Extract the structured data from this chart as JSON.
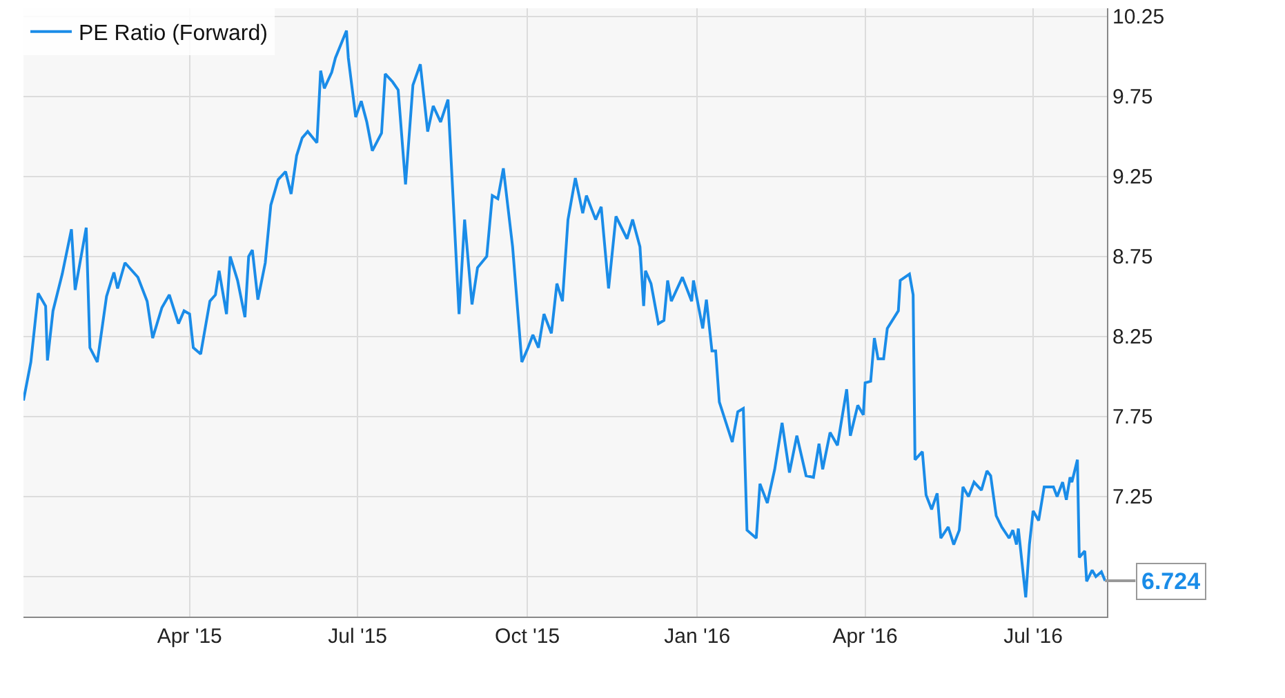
{
  "chart_data": {
    "type": "line",
    "legend": "top left",
    "grid": true,
    "marker": "none",
    "line_style": "solid",
    "xlim": [
      "2015-01-01",
      "2016-08-10"
    ],
    "xticks": [
      {
        "value": "2015-04-01",
        "label": "Apr '15"
      },
      {
        "value": "2015-07-01",
        "label": "Jul '15"
      },
      {
        "value": "2015-10-01",
        "label": "Oct '15"
      },
      {
        "value": "2016-01-01",
        "label": "Jan '16"
      },
      {
        "value": "2016-04-01",
        "label": "Apr '16"
      },
      {
        "value": "2016-07-01",
        "label": "Jul '16"
      }
    ],
    "ylim": [
      6.5,
      10.3
    ],
    "yticks": [
      {
        "value": 6.75,
        "label": null
      },
      7.25,
      7.75,
      8.25,
      8.75,
      9.25,
      9.75,
      10.25
    ],
    "annotations": [
      {
        "text": "6.724",
        "x": "2016-08-09",
        "y": 6.724
      }
    ],
    "x": [
      "2015-01-01",
      "2015-01-05",
      "2015-01-09",
      "2015-01-13",
      "2015-01-14",
      "2015-01-17",
      "2015-01-22",
      "2015-01-27",
      "2015-01-29",
      "2015-02-04",
      "2015-02-06",
      "2015-02-10",
      "2015-02-15",
      "2015-02-19",
      "2015-02-21",
      "2015-02-25",
      "2015-03-04",
      "2015-03-09",
      "2015-03-12",
      "2015-03-17",
      "2015-03-21",
      "2015-03-26",
      "2015-03-29",
      "2015-04-01",
      "2015-04-03",
      "2015-04-07",
      "2015-04-12",
      "2015-04-15",
      "2015-04-17",
      "2015-04-21",
      "2015-04-23",
      "2015-04-27",
      "2015-05-01",
      "2015-05-03",
      "2015-05-05",
      "2015-05-08",
      "2015-05-12",
      "2015-05-15",
      "2015-05-19",
      "2015-05-23",
      "2015-05-26",
      "2015-05-29",
      "2015-06-01",
      "2015-06-04",
      "2015-06-09",
      "2015-06-11",
      "2015-06-13",
      "2015-06-17",
      "2015-06-19",
      "2015-06-25",
      "2015-06-26",
      "2015-06-30",
      "2015-07-03",
      "2015-07-06",
      "2015-07-09",
      "2015-07-14",
      "2015-07-16",
      "2015-07-20",
      "2015-07-23",
      "2015-07-27",
      "2015-07-31",
      "2015-08-04",
      "2015-08-08",
      "2015-08-11",
      "2015-08-15",
      "2015-08-19",
      "2015-08-25",
      "2015-08-28",
      "2015-09-01",
      "2015-09-04",
      "2015-09-09",
      "2015-09-12",
      "2015-09-15",
      "2015-09-18",
      "2015-09-23",
      "2015-09-28",
      "2015-10-01",
      "2015-10-04",
      "2015-10-07",
      "2015-10-10",
      "2015-10-14",
      "2015-10-17",
      "2015-10-20",
      "2015-10-23",
      "2015-10-27",
      "2015-10-31",
      "2015-11-02",
      "2015-11-07",
      "2015-11-10",
      "2015-11-14",
      "2015-11-18",
      "2015-11-24",
      "2015-11-27",
      "2015-12-01",
      "2015-12-03",
      "2015-12-04",
      "2015-12-07",
      "2015-12-11",
      "2015-12-14",
      "2015-12-16",
      "2015-12-18",
      "2015-12-24",
      "2015-12-29",
      "2015-12-30",
      "2016-01-04",
      "2016-01-06",
      "2016-01-09",
      "2016-01-11",
      "2016-01-13",
      "2016-01-20",
      "2016-01-23",
      "2016-01-26",
      "2016-01-28",
      "2016-02-02",
      "2016-02-04",
      "2016-02-08",
      "2016-02-12",
      "2016-02-16",
      "2016-02-20",
      "2016-02-24",
      "2016-02-29",
      "2016-03-04",
      "2016-03-07",
      "2016-03-09",
      "2016-03-13",
      "2016-03-17",
      "2016-03-22",
      "2016-03-24",
      "2016-03-28",
      "2016-03-31",
      "2016-04-01",
      "2016-04-04",
      "2016-04-06",
      "2016-04-08",
      "2016-04-11",
      "2016-04-13",
      "2016-04-19",
      "2016-04-20",
      "2016-04-25",
      "2016-04-27",
      "2016-04-28",
      "2016-05-02",
      "2016-05-04",
      "2016-05-07",
      "2016-05-10",
      "2016-05-12",
      "2016-05-16",
      "2016-05-19",
      "2016-05-22",
      "2016-05-24",
      "2016-05-27",
      "2016-05-30",
      "2016-06-03",
      "2016-06-06",
      "2016-06-08",
      "2016-06-11",
      "2016-06-14",
      "2016-06-18",
      "2016-06-20",
      "2016-06-22",
      "2016-06-23",
      "2016-06-27",
      "2016-06-29",
      "2016-07-01",
      "2016-07-04",
      "2016-07-07",
      "2016-07-12",
      "2016-07-14",
      "2016-07-17",
      "2016-07-19",
      "2016-07-21",
      "2016-07-22",
      "2016-07-25",
      "2016-07-26",
      "2016-07-29",
      "2016-07-30",
      "2016-08-02",
      "2016-08-04",
      "2016-08-07",
      "2016-08-09"
    ],
    "series": [
      {
        "name": "PE Ratio (Forward)",
        "color": "#1a8ce8",
        "values": [
          7.85,
          8.09,
          8.52,
          8.44,
          8.1,
          8.41,
          8.64,
          8.92,
          8.54,
          8.93,
          8.18,
          8.09,
          8.5,
          8.65,
          8.55,
          8.71,
          8.62,
          8.47,
          8.24,
          8.43,
          8.51,
          8.33,
          8.41,
          8.39,
          8.18,
          8.14,
          8.47,
          8.51,
          8.66,
          8.39,
          8.75,
          8.6,
          8.37,
          8.75,
          8.79,
          8.48,
          8.71,
          9.07,
          9.23,
          9.28,
          9.14,
          9.38,
          9.49,
          9.53,
          9.46,
          9.91,
          9.8,
          9.9,
          9.99,
          10.16,
          9.99,
          9.62,
          9.72,
          9.59,
          9.41,
          9.52,
          9.89,
          9.84,
          9.79,
          9.2,
          9.82,
          9.95,
          9.53,
          9.69,
          9.59,
          9.73,
          8.39,
          8.98,
          8.45,
          8.68,
          8.75,
          9.13,
          9.11,
          9.3,
          8.81,
          8.09,
          8.17,
          8.26,
          8.18,
          8.39,
          8.27,
          8.58,
          8.47,
          8.98,
          9.24,
          9.02,
          9.13,
          8.98,
          9.06,
          8.55,
          9.0,
          8.86,
          8.98,
          8.81,
          8.44,
          8.66,
          8.58,
          8.33,
          8.35,
          8.6,
          8.47,
          8.62,
          8.47,
          8.6,
          8.3,
          8.48,
          8.16,
          8.16,
          7.84,
          7.59,
          7.78,
          7.8,
          7.04,
          6.99,
          7.33,
          7.21,
          7.42,
          7.71,
          7.4,
          7.63,
          7.38,
          7.37,
          7.58,
          7.42,
          7.65,
          7.57,
          7.92,
          7.63,
          7.82,
          7.76,
          7.96,
          7.97,
          8.24,
          8.11,
          8.11,
          8.3,
          8.41,
          8.6,
          8.64,
          8.51,
          7.48,
          7.53,
          7.26,
          7.17,
          7.27,
          6.99,
          7.06,
          6.95,
          7.04,
          7.31,
          7.25,
          7.34,
          7.29,
          7.41,
          7.38,
          7.13,
          7.06,
          6.99,
          7.04,
          6.95,
          7.05,
          6.62,
          6.95,
          7.16,
          7.1,
          7.31,
          7.31,
          7.25,
          7.34,
          7.23,
          7.37,
          7.34,
          7.48,
          6.87,
          6.91,
          6.72,
          6.79,
          6.75,
          6.78,
          6.724
        ]
      }
    ]
  }
}
